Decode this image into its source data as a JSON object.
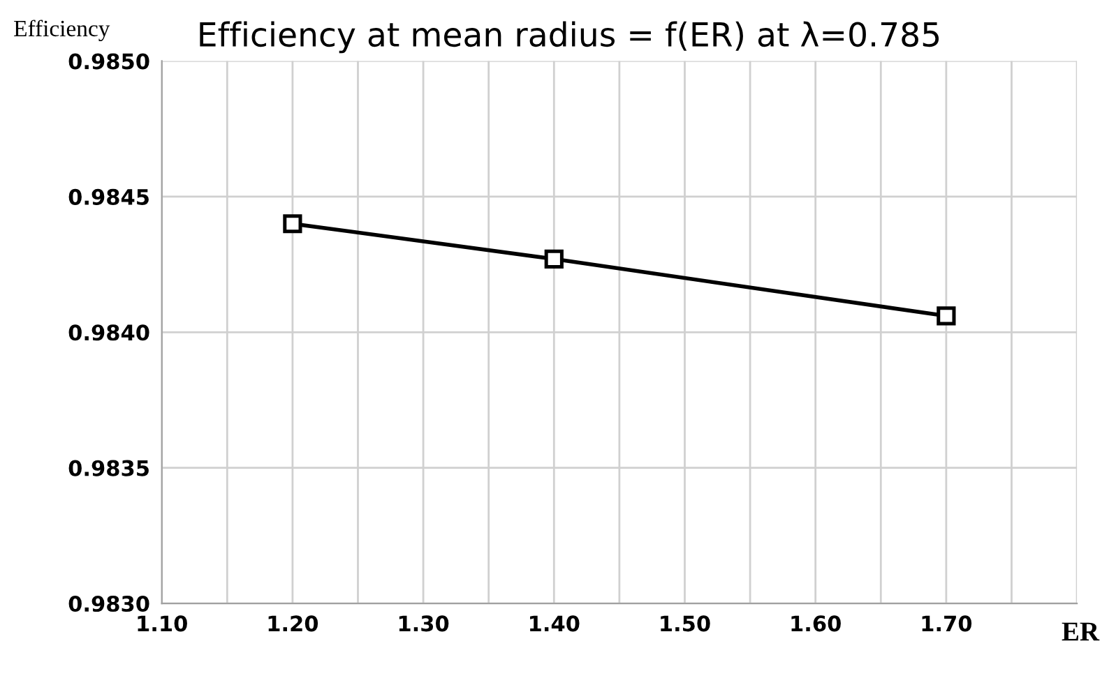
{
  "chart_data": {
    "type": "line",
    "title": "Efficiency at mean radius = f(ER) at λ=0.785",
    "xlabel": "ER",
    "ylabel": "Efficiency",
    "x": [
      1.2,
      1.4,
      1.7
    ],
    "series": [
      {
        "color": "#000000",
        "values": [
          0.9844,
          0.98427,
          0.98406
        ]
      }
    ],
    "xlim": [
      1.1,
      1.8
    ],
    "xticks": [
      {
        "value": 1.1,
        "label": "1.10"
      },
      {
        "value": 1.15,
        "label": null
      },
      {
        "value": 1.2,
        "label": "1.20"
      },
      {
        "value": 1.25,
        "label": null
      },
      {
        "value": 1.3,
        "label": "1.30"
      },
      {
        "value": 1.35,
        "label": null
      },
      {
        "value": 1.4,
        "label": "1.40"
      },
      {
        "value": 1.45,
        "label": null
      },
      {
        "value": 1.5,
        "label": "1.50"
      },
      {
        "value": 1.55,
        "label": null
      },
      {
        "value": 1.6,
        "label": "1.60"
      },
      {
        "value": 1.65,
        "label": null
      },
      {
        "value": 1.7,
        "label": "1.70"
      },
      {
        "value": 1.75,
        "label": null
      },
      {
        "value": 1.8,
        "label": null
      }
    ],
    "ylim": [
      0.983,
      0.985
    ],
    "yticks": [
      {
        "value": 0.983,
        "label": "0.9830"
      },
      {
        "value": 0.9835,
        "label": "0.9835"
      },
      {
        "value": 0.984,
        "label": "0.9840"
      },
      {
        "value": 0.9845,
        "label": "0.9845"
      },
      {
        "value": 0.985,
        "label": "0.9850"
      }
    ],
    "grid": true,
    "marker": "square",
    "line_style": "solid"
  }
}
